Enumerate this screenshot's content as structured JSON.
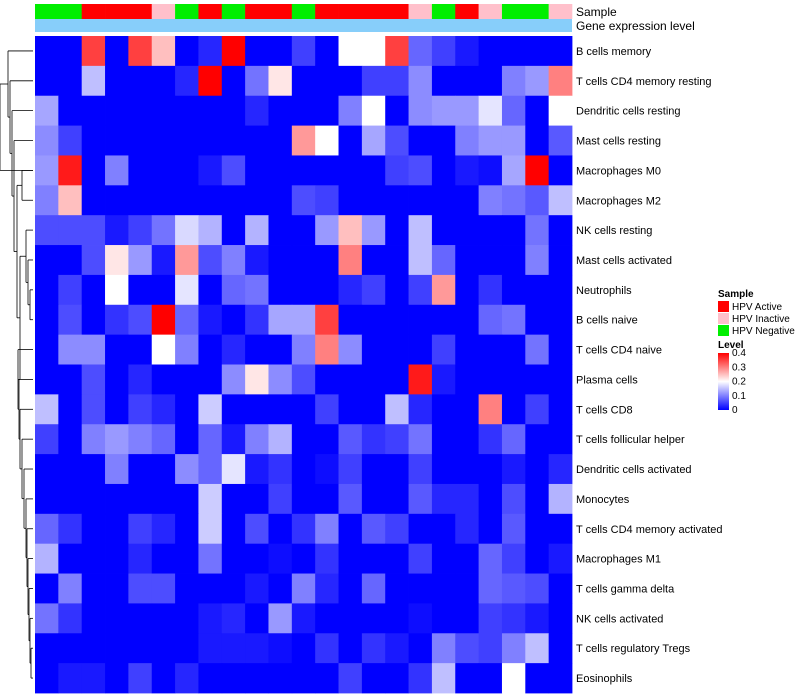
{
  "chart_data": {
    "type": "heatmap",
    "title": "",
    "sample_annotation_label": "Sample",
    "level_annotation_label": "Gene expression level",
    "columns_sample_group": [
      "HPV Negative",
      "HPV Negative",
      "HPV Active",
      "HPV Active",
      "HPV Active",
      "HPV Inactive",
      "HPV Negative",
      "HPV Active",
      "HPV Negative",
      "HPV Active",
      "HPV Active",
      "HPV Negative",
      "HPV Active",
      "HPV Active",
      "HPV Active",
      "HPV Active",
      "HPV Inactive",
      "HPV Negative",
      "HPV Active",
      "HPV Inactive",
      "HPV Negative",
      "HPV Negative",
      "HPV Inactive"
    ],
    "rows": [
      "B cells memory",
      "T cells CD4 memory resting",
      "Dendritic cells resting",
      "Mast cells resting",
      "Macrophages M0",
      "Macrophages M2",
      "NK cells resting",
      "Mast cells activated",
      "Neutrophils",
      "B cells naive",
      "T cells CD4 naive",
      "Plasma cells",
      "T cells CD8",
      "T cells follicular helper",
      "Dendritic cells activated",
      "Monocytes",
      "T cells CD4 memory activated",
      "Macrophages M1",
      "T cells gamma delta",
      "NK cells activated",
      "T cells regulatory  Tregs",
      "Eosinophils"
    ],
    "values": [
      [
        0,
        0,
        0.35,
        0,
        0.35,
        0.25,
        0,
        0.03,
        0.4,
        0,
        0,
        0.05,
        0,
        0.2,
        0.2,
        0.35,
        0.08,
        0.05,
        0.02,
        0,
        0,
        0,
        0
      ],
      [
        0,
        0,
        0.15,
        0,
        0,
        0,
        0.03,
        0.4,
        0,
        0.09,
        0.22,
        0,
        0,
        0,
        0.05,
        0.05,
        0.11,
        0,
        0,
        0,
        0.1,
        0.12,
        0.3
      ],
      [
        0.13,
        0,
        0,
        0,
        0,
        0,
        0,
        0,
        0,
        0.03,
        0,
        0,
        0,
        0.1,
        0.2,
        0,
        0.11,
        0.12,
        0.12,
        0.18,
        0.08,
        0,
        0.2
      ],
      [
        0.11,
        0.05,
        0,
        0,
        0,
        0,
        0,
        0,
        0,
        0,
        0,
        0.28,
        0.2,
        0,
        0.13,
        0.06,
        0,
        0,
        0.1,
        0.12,
        0.12,
        0,
        0.07
      ],
      [
        0.12,
        0.38,
        0,
        0.1,
        0,
        0,
        0,
        0.02,
        0.06,
        0,
        0,
        0,
        0,
        0,
        0,
        0.05,
        0.06,
        0,
        0.02,
        0.01,
        0.13,
        0.4,
        0
      ],
      [
        0.1,
        0.25,
        0,
        0,
        0,
        0,
        0,
        0,
        0,
        0,
        0,
        0.06,
        0.05,
        0,
        0,
        0,
        0,
        0,
        0,
        0.1,
        0.09,
        0.07,
        0.15
      ],
      [
        0.06,
        0.06,
        0.06,
        0.02,
        0.05,
        0.09,
        0.17,
        0.14,
        0,
        0.14,
        0,
        0,
        0.12,
        0.25,
        0.12,
        0,
        0.15,
        0,
        0,
        0,
        0,
        0.09,
        0
      ],
      [
        0,
        0,
        0.06,
        0.22,
        0.12,
        0.02,
        0.28,
        0.06,
        0.1,
        0.02,
        0,
        0,
        0,
        0.3,
        0,
        0,
        0.15,
        0.08,
        0,
        0,
        0,
        0.1,
        0
      ],
      [
        0,
        0.05,
        0,
        0.2,
        0,
        0,
        0.18,
        0,
        0.08,
        0.09,
        0,
        0,
        0,
        0.03,
        0.05,
        0,
        0.05,
        0.28,
        0,
        0.04,
        0,
        0,
        0
      ],
      [
        0,
        0.06,
        0,
        0.04,
        0.06,
        0.4,
        0.08,
        0.02,
        0,
        0.04,
        0.13,
        0.13,
        0.35,
        0,
        0,
        0,
        0,
        0,
        0,
        0.08,
        0.09,
        0,
        0
      ],
      [
        0,
        0.11,
        0.11,
        0,
        0,
        0.2,
        0.1,
        0,
        0.03,
        0,
        0,
        0.1,
        0.3,
        0.11,
        0,
        0,
        0,
        0.05,
        0,
        0,
        0,
        0.09,
        0
      ],
      [
        0,
        0,
        0.06,
        0,
        0.03,
        0,
        0,
        0,
        0.11,
        0.22,
        0.11,
        0.06,
        0,
        0,
        0,
        0,
        0.38,
        0.02,
        0,
        0,
        0,
        0,
        0
      ],
      [
        0.15,
        0,
        0.06,
        0,
        0.05,
        0.03,
        0,
        0.16,
        0,
        0,
        0,
        0,
        0.05,
        0,
        0,
        0.15,
        0.03,
        0,
        0,
        0.3,
        0,
        0.05,
        0
      ],
      [
        0.05,
        0,
        0.1,
        0.12,
        0.1,
        0.08,
        0,
        0.08,
        0.02,
        0.1,
        0.14,
        0,
        0,
        0.07,
        0.04,
        0.05,
        0.09,
        0,
        0,
        0.04,
        0.08,
        0,
        0
      ],
      [
        0,
        0,
        0,
        0.1,
        0,
        0,
        0.11,
        0.08,
        0.18,
        0.02,
        0.04,
        0,
        0.01,
        0.05,
        0,
        0,
        0.05,
        0,
        0,
        0,
        0.02,
        0,
        0.03
      ],
      [
        0,
        0,
        0,
        0,
        0,
        0,
        0,
        0.16,
        0,
        0,
        0.05,
        0,
        0,
        0.07,
        0,
        0,
        0.07,
        0.03,
        0.03,
        0,
        0.06,
        0,
        0.14
      ],
      [
        0.08,
        0.04,
        0,
        0,
        0.05,
        0.03,
        0,
        0.16,
        0,
        0.06,
        0,
        0.04,
        0.1,
        0,
        0.07,
        0.05,
        0,
        0,
        0.03,
        0,
        0.07,
        0,
        0
      ],
      [
        0.14,
        0,
        0,
        0,
        0.03,
        0,
        0,
        0.09,
        0,
        0,
        0.01,
        0,
        0.04,
        0,
        0,
        0,
        0.05,
        0,
        0,
        0.08,
        0.05,
        0,
        0.02
      ],
      [
        0,
        0.1,
        0,
        0,
        0.06,
        0.06,
        0,
        0,
        0,
        0.02,
        0,
        0.1,
        0.03,
        0,
        0.08,
        0,
        0,
        0,
        0,
        0.08,
        0.07,
        0.06,
        0
      ],
      [
        0.09,
        0.04,
        0,
        0,
        0,
        0,
        0,
        0.02,
        0.03,
        0,
        0.12,
        0.02,
        0,
        0,
        0,
        0,
        0.01,
        0,
        0,
        0.05,
        0.04,
        0.02,
        0
      ],
      [
        0,
        0,
        0,
        0,
        0,
        0,
        0,
        0.02,
        0.02,
        0.02,
        0.01,
        0,
        0.04,
        0,
        0.04,
        0.02,
        0,
        0.1,
        0.06,
        0.05,
        0.1,
        0.15,
        0
      ],
      [
        0,
        0.02,
        0.02,
        0,
        0.05,
        0,
        0.03,
        0,
        0,
        0,
        0,
        0,
        0,
        0.05,
        0,
        0,
        0.04,
        0.15,
        0,
        0,
        0.2,
        0,
        0
      ]
    ],
    "colorscale": {
      "min": 0,
      "max": 0.4,
      "low_color": "#0000ff",
      "mid_color": "#ffffff",
      "high_color": "#ff0000"
    },
    "legend": {
      "sample_title": "Sample",
      "sample_entries": [
        {
          "label": "HPV Active",
          "color": "#ff0000"
        },
        {
          "label": "HPV Inactive",
          "color": "#ffc0cb"
        },
        {
          "label": "HPV Negative",
          "color": "#00ee00"
        }
      ],
      "level_title": "Level",
      "level_ticks": [
        0.4,
        0.3,
        0.2,
        0.1,
        0
      ],
      "level_tick_labels": [
        "0.4",
        "0.3",
        "0.2",
        "0.1",
        "0"
      ]
    },
    "level_annotation_color": "#87cefa",
    "row_dendrogram": true
  }
}
